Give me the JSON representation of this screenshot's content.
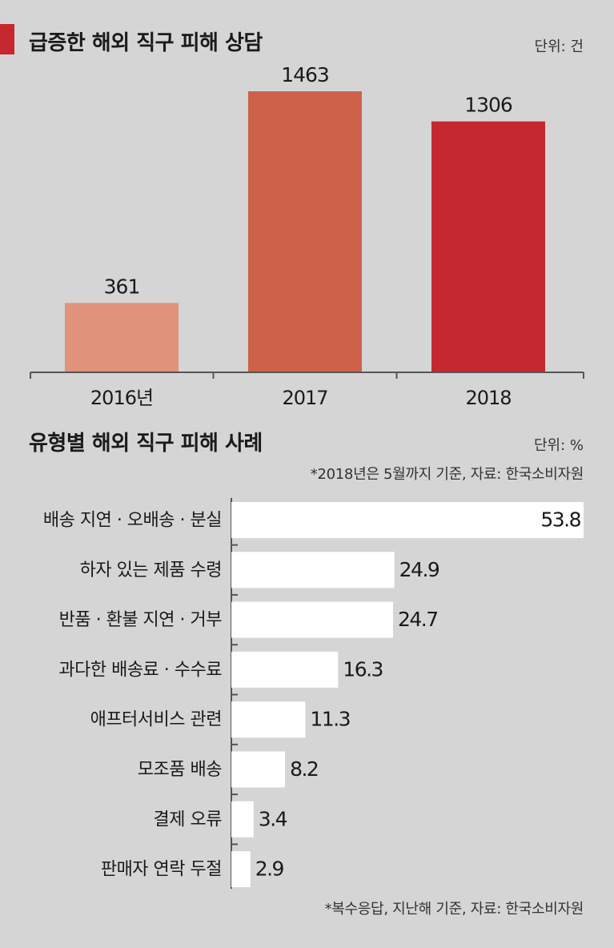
{
  "top": {
    "title": "급증한 해외 직구 피해 상담",
    "unit": "단위: 건"
  },
  "bottom": {
    "title": "유형별 해외 직구 피해 사례",
    "unit": "단위: %",
    "note": "*2018년은 5월까지 기준, 자료: 한국소비자원",
    "footnote": "*복수응답, 지난해 기준, 자료: 한국소비자원"
  },
  "colors": {
    "accent": "#c5282f",
    "bar_2016": "#e0927a",
    "bar_2017": "#cd624b",
    "bar_2018": "#c5282f",
    "hbar": "#ffffff"
  },
  "chart_data": [
    {
      "type": "bar",
      "title": "급증한 해외 직구 피해 상담",
      "categories": [
        "2016년",
        "2017",
        "2018"
      ],
      "values": [
        361,
        1463,
        1306
      ],
      "data_labels": [
        "361",
        "1463",
        "1306"
      ],
      "ylabel": "",
      "xlabel": "",
      "ylim": [
        0,
        1463
      ],
      "grid": false
    },
    {
      "type": "bar",
      "orientation": "horizontal",
      "title": "유형별 해외 직구 피해 사례",
      "categories": [
        "배송 지연 · 오배송 · 분실",
        "하자 있는 제품 수령",
        "반품 · 환불 지연 · 거부",
        "과다한 배송료 · 수수료",
        "애프터서비스 관련",
        "모조품 배송",
        "결제 오류",
        "판매자 연락 두절"
      ],
      "values": [
        53.8,
        24.9,
        24.7,
        16.3,
        11.3,
        8.2,
        3.4,
        2.9
      ],
      "data_labels": [
        "53.8",
        "24.9",
        "24.7",
        "16.3",
        "11.3",
        "8.2",
        "3.4",
        "2.9"
      ],
      "xlim": [
        0,
        53.8
      ],
      "grid": false
    }
  ]
}
